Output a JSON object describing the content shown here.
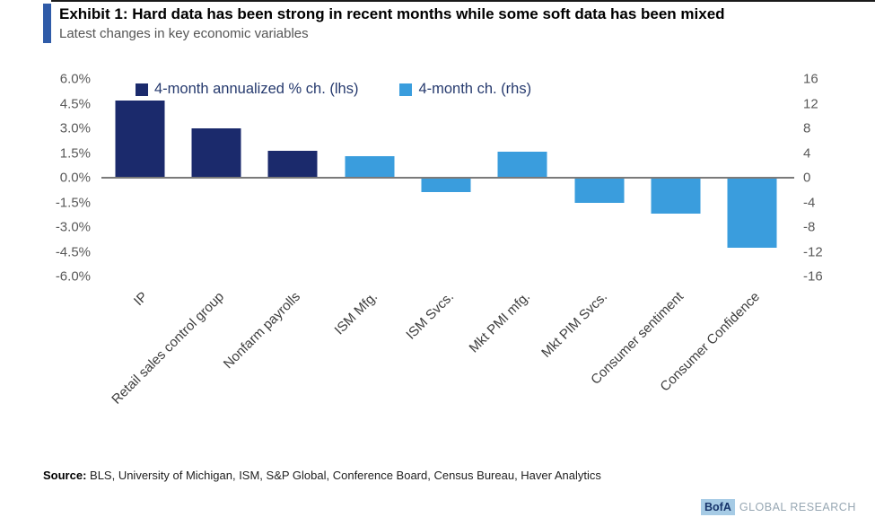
{
  "header": {
    "title": "Exhibit 1: Hard data has been strong in recent months while some soft data has been mixed",
    "subtitle": "Latest changes in key economic variables",
    "accent_color": "#2f5ba8"
  },
  "chart_data": {
    "type": "bar",
    "title": "Latest changes in key economic variables",
    "categories": [
      "IP",
      "Retail sales control group",
      "Nonfarm payrolls",
      "ISM Mfg.",
      "ISM Svcs.",
      "Mkt PMI mfg.",
      "Mkt PIM Svcs.",
      "Consumer sentiment",
      "Consumer Confidence"
    ],
    "series": [
      {
        "name": "4-month annualized % ch. (lhs)",
        "axis": "left",
        "color": "#1b2a6c",
        "values": [
          4.7,
          3.0,
          1.65,
          null,
          null,
          null,
          null,
          null,
          null
        ]
      },
      {
        "name": "4-month ch. (rhs)",
        "axis": "right",
        "color": "#3a9ddd",
        "values": [
          null,
          null,
          null,
          3.5,
          -2.3,
          4.2,
          -4.1,
          -5.8,
          -11.4
        ]
      }
    ],
    "left_axis": {
      "ticks": [
        "6.0%",
        "4.5%",
        "3.0%",
        "1.5%",
        "0.0%",
        "-1.5%",
        "-3.0%",
        "-4.5%",
        "-6.0%"
      ],
      "min": -6,
      "max": 6
    },
    "right_axis": {
      "ticks": [
        "16",
        "12",
        "8",
        "4",
        "0",
        "-4",
        "-8",
        "-12",
        "-16"
      ],
      "min": -16,
      "max": 16
    },
    "grid": false,
    "legend_position": "top",
    "zero_line_color": "#7a7a7a"
  },
  "footer": {
    "source_label": "Source:",
    "source_text": " BLS, University of Michigan, ISM, S&P Global, Conference Board, Census Bureau, Haver Analytics"
  },
  "brand": {
    "badge": "BofA",
    "text": "GLOBAL RESEARCH"
  }
}
